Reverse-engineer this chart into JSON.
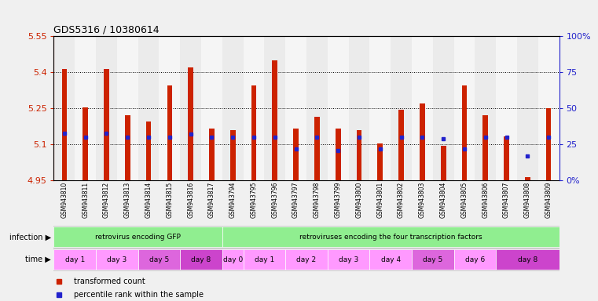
{
  "title": "GDS5316 / 10380614",
  "samples": [
    "GSM943810",
    "GSM943811",
    "GSM943812",
    "GSM943813",
    "GSM943814",
    "GSM943815",
    "GSM943816",
    "GSM943817",
    "GSM943794",
    "GSM943795",
    "GSM943796",
    "GSM943797",
    "GSM943798",
    "GSM943799",
    "GSM943800",
    "GSM943801",
    "GSM943802",
    "GSM943803",
    "GSM943804",
    "GSM943805",
    "GSM943806",
    "GSM943807",
    "GSM943808",
    "GSM943809"
  ],
  "transformed_count": [
    5.415,
    5.255,
    5.415,
    5.22,
    5.195,
    5.345,
    5.42,
    5.165,
    5.16,
    5.345,
    5.45,
    5.165,
    5.215,
    5.165,
    5.16,
    5.105,
    5.245,
    5.27,
    5.095,
    5.345,
    5.22,
    5.135,
    4.965,
    5.25
  ],
  "percentile_rank": [
    33,
    30,
    33,
    30,
    30,
    30,
    32,
    30,
    30,
    30,
    30,
    22,
    30,
    21,
    30,
    22,
    30,
    30,
    29,
    22,
    30,
    30,
    17,
    30
  ],
  "baseline": 4.95,
  "ylim_left": [
    4.95,
    5.55
  ],
  "ylim_right": [
    0,
    100
  ],
  "yticks_left": [
    4.95,
    5.1,
    5.25,
    5.4,
    5.55
  ],
  "yticks_right": [
    0,
    25,
    50,
    75,
    100
  ],
  "infection_groups": [
    {
      "label": "retrovirus encoding GFP",
      "start": 0,
      "end": 8,
      "color": "#90ee90"
    },
    {
      "label": "retroviruses encoding the four transcription factors",
      "start": 8,
      "end": 24,
      "color": "#90ee90"
    }
  ],
  "time_groups": [
    {
      "label": "day 1",
      "start": 0,
      "end": 2,
      "color": "#ff99ff"
    },
    {
      "label": "day 3",
      "start": 2,
      "end": 4,
      "color": "#ff99ff"
    },
    {
      "label": "day 5",
      "start": 4,
      "end": 6,
      "color": "#dd66dd"
    },
    {
      "label": "day 8",
      "start": 6,
      "end": 8,
      "color": "#cc44cc"
    },
    {
      "label": "day 0",
      "start": 8,
      "end": 9,
      "color": "#ff99ff"
    },
    {
      "label": "day 1",
      "start": 9,
      "end": 11,
      "color": "#ff99ff"
    },
    {
      "label": "day 2",
      "start": 11,
      "end": 13,
      "color": "#ff99ff"
    },
    {
      "label": "day 3",
      "start": 13,
      "end": 15,
      "color": "#ff99ff"
    },
    {
      "label": "day 4",
      "start": 15,
      "end": 17,
      "color": "#ff99ff"
    },
    {
      "label": "day 5",
      "start": 17,
      "end": 19,
      "color": "#dd66dd"
    },
    {
      "label": "day 6",
      "start": 19,
      "end": 21,
      "color": "#ff99ff"
    },
    {
      "label": "day 8",
      "start": 21,
      "end": 24,
      "color": "#cc44cc"
    }
  ],
  "bar_color": "#cc2200",
  "dot_color": "#2222cc",
  "background_color": "#f0f0f0",
  "plot_bg_color": "#ffffff",
  "label_color_left": "#cc2200",
  "label_color_right": "#2222cc",
  "bar_width": 0.25,
  "legend_items": [
    {
      "color": "#cc2200",
      "label": "transformed count"
    },
    {
      "color": "#2222cc",
      "label": "percentile rank within the sample"
    }
  ]
}
